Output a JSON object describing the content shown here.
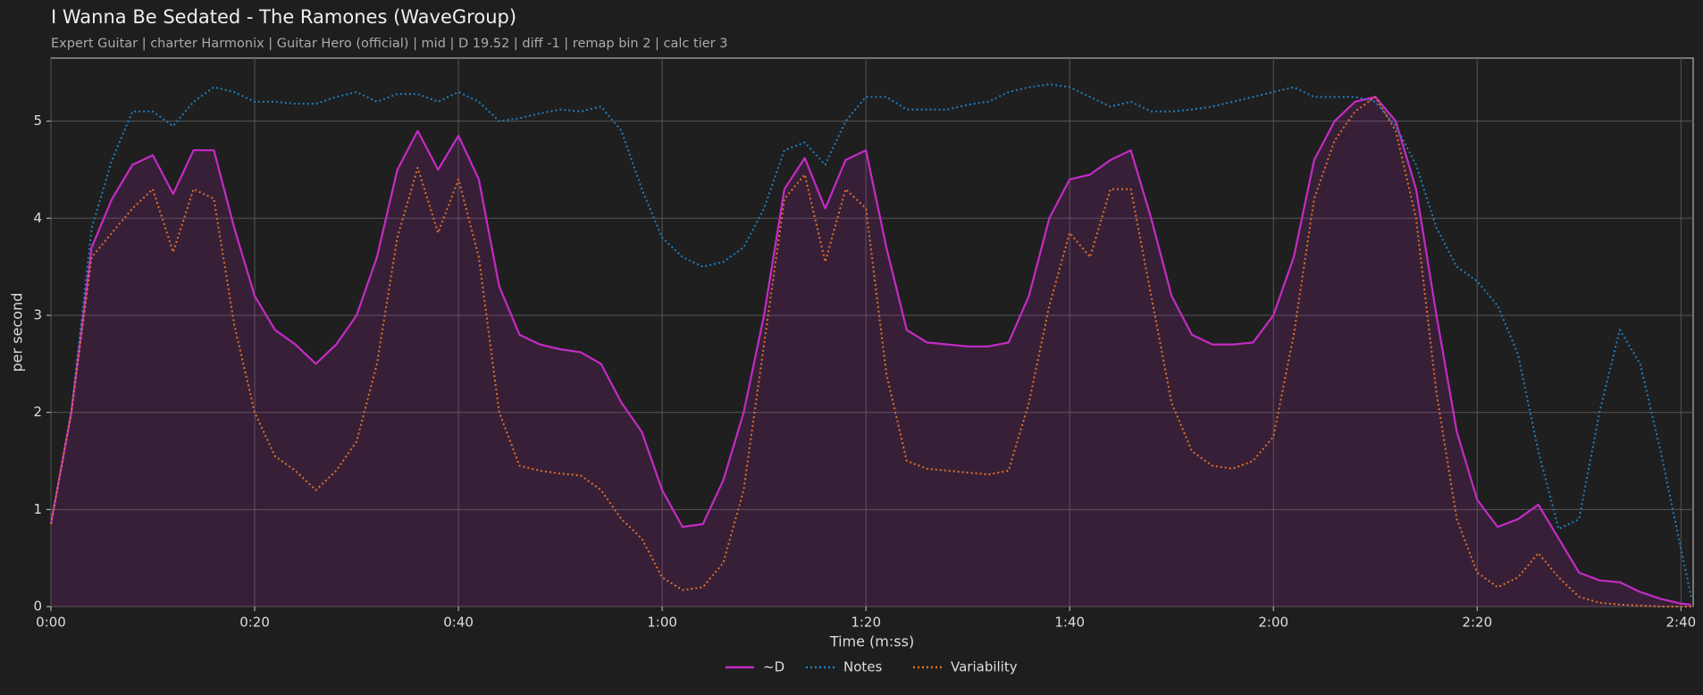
{
  "chart_data": {
    "type": "line",
    "title": "I Wanna Be Sedated - The Ramones (WaveGroup)",
    "subtitle": "Expert Guitar  |  charter Harmonix  |  Guitar Hero (official)  |  mid  |  D 19.52  |  diff -1  |  remap bin 2  |  calc tier 3",
    "x_label": "Time (m:ss)",
    "y_label": "per second",
    "x": [
      0,
      2,
      4,
      6,
      8,
      10,
      12,
      14,
      16,
      18,
      20,
      22,
      24,
      26,
      28,
      30,
      32,
      34,
      36,
      38,
      40,
      42,
      44,
      46,
      48,
      50,
      52,
      54,
      56,
      58,
      60,
      62,
      64,
      66,
      68,
      70,
      72,
      74,
      76,
      78,
      80,
      82,
      84,
      86,
      88,
      90,
      92,
      94,
      96,
      98,
      100,
      102,
      104,
      106,
      108,
      110,
      112,
      114,
      116,
      118,
      120,
      122,
      124,
      126,
      128,
      130,
      132,
      134,
      136,
      138,
      140,
      142,
      144,
      146,
      148,
      150,
      152,
      154,
      156,
      158,
      160,
      161
    ],
    "series": [
      {
        "name": "~D",
        "color": "#c42bc4",
        "style": "solid",
        "fill": true,
        "values": [
          0.85,
          2.0,
          3.7,
          4.2,
          4.55,
          4.65,
          4.25,
          4.7,
          4.7,
          3.9,
          3.2,
          2.85,
          2.7,
          2.5,
          2.7,
          3.0,
          3.6,
          4.5,
          4.9,
          4.5,
          4.85,
          4.4,
          3.3,
          2.8,
          2.7,
          2.65,
          2.62,
          2.5,
          2.1,
          1.8,
          1.2,
          0.82,
          0.85,
          1.3,
          2.0,
          3.0,
          4.3,
          4.62,
          4.1,
          4.6,
          4.7,
          3.7,
          2.85,
          2.72,
          2.7,
          2.68,
          2.68,
          2.72,
          3.2,
          4.0,
          4.4,
          4.45,
          4.6,
          4.7,
          4.0,
          3.2,
          2.8,
          2.7,
          2.7,
          2.72,
          3.0,
          3.6,
          4.6,
          5.0,
          5.2,
          5.25,
          5.0,
          4.3,
          3.0,
          1.8,
          1.1,
          0.82,
          0.9,
          1.05,
          0.7,
          0.35,
          0.27,
          0.25,
          0.15,
          0.08,
          0.03,
          0.02
        ]
      },
      {
        "name": "Notes",
        "color": "#1f7fc0",
        "style": "dotted",
        "fill": false,
        "values": [
          0.85,
          2.0,
          3.9,
          4.6,
          5.1,
          5.1,
          4.95,
          5.2,
          5.35,
          5.3,
          5.2,
          5.2,
          5.18,
          5.18,
          5.25,
          5.3,
          5.2,
          5.28,
          5.28,
          5.2,
          5.3,
          5.2,
          5.0,
          5.03,
          5.08,
          5.12,
          5.1,
          5.15,
          4.9,
          4.3,
          3.8,
          3.6,
          3.5,
          3.55,
          3.7,
          4.1,
          4.7,
          4.78,
          4.55,
          5.0,
          5.25,
          5.25,
          5.12,
          5.12,
          5.12,
          5.17,
          5.2,
          5.3,
          5.35,
          5.38,
          5.35,
          5.25,
          5.15,
          5.2,
          5.1,
          5.1,
          5.12,
          5.15,
          5.2,
          5.25,
          5.3,
          5.35,
          5.25,
          5.25,
          5.25,
          5.2,
          4.95,
          4.55,
          3.9,
          3.5,
          3.35,
          3.1,
          2.6,
          1.6,
          0.8,
          0.9,
          2.0,
          2.85,
          2.5,
          1.6,
          0.6,
          0.1
        ]
      },
      {
        "name": "Variability",
        "color": "#e0702a",
        "style": "dotted",
        "fill": false,
        "values": [
          0.85,
          2.0,
          3.6,
          3.85,
          4.1,
          4.3,
          3.65,
          4.3,
          4.2,
          2.9,
          2.0,
          1.55,
          1.4,
          1.2,
          1.4,
          1.7,
          2.5,
          3.8,
          4.52,
          3.85,
          4.4,
          3.6,
          2.0,
          1.45,
          1.4,
          1.37,
          1.35,
          1.2,
          0.9,
          0.7,
          0.3,
          0.17,
          0.2,
          0.45,
          1.2,
          2.7,
          4.2,
          4.45,
          3.55,
          4.3,
          4.1,
          2.4,
          1.5,
          1.42,
          1.4,
          1.38,
          1.36,
          1.4,
          2.1,
          3.1,
          3.85,
          3.6,
          4.3,
          4.3,
          3.2,
          2.1,
          1.6,
          1.45,
          1.42,
          1.5,
          1.75,
          2.8,
          4.2,
          4.8,
          5.1,
          5.25,
          4.9,
          4.0,
          2.2,
          0.9,
          0.35,
          0.2,
          0.3,
          0.55,
          0.3,
          0.1,
          0.04,
          0.02,
          0.01,
          0,
          0,
          0
        ]
      }
    ],
    "xlim": [
      0,
      161.2
    ],
    "ylim": [
      0,
      5.65
    ],
    "xticks": [
      {
        "value": 0,
        "label": "0:00"
      },
      {
        "value": 20,
        "label": "0:20"
      },
      {
        "value": 40,
        "label": "0:40"
      },
      {
        "value": 60,
        "label": "1:00"
      },
      {
        "value": 80,
        "label": "1:20"
      },
      {
        "value": 100,
        "label": "1:40"
      },
      {
        "value": 120,
        "label": "2:00"
      },
      {
        "value": 140,
        "label": "2:20"
      },
      {
        "value": 160,
        "label": "2:40"
      }
    ],
    "yticks": [
      0,
      1,
      2,
      3,
      4,
      5
    ],
    "grid": true,
    "legend": "bottom"
  }
}
